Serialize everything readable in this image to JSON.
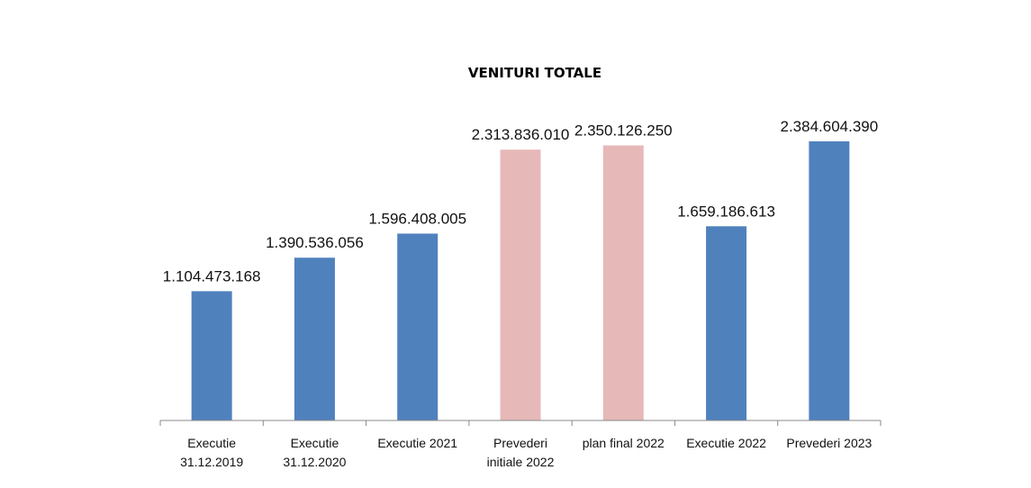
{
  "chart_data": {
    "type": "bar",
    "title": "VENITURI TOTALE",
    "xlabel": "",
    "ylabel": "",
    "ylim": [
      0,
      2500000000
    ],
    "grid": false,
    "legend": "none",
    "categories": [
      [
        "Executie",
        "31.12.2019"
      ],
      [
        "Executie",
        "31.12.2020"
      ],
      [
        "Executie 2021"
      ],
      [
        "Prevederi",
        "initiale 2022"
      ],
      [
        "plan final 2022"
      ],
      [
        "Executie 2022"
      ],
      [
        "Prevederi 2023"
      ]
    ],
    "values": [
      1104473168,
      1390536056,
      1596408005,
      2313836010,
      2350126250,
      1659186613,
      2384604390
    ],
    "data_labels": [
      "1.104.473.168",
      "1.390.536.056",
      "1.596.408.005",
      "2.313.836.010",
      "2.350.126.250",
      "1.659.186.613",
      "2.384.604.390"
    ],
    "bar_colors": [
      "#4f81bd",
      "#4f81bd",
      "#4f81bd",
      "#e6b9b8",
      "#e6b9b8",
      "#4f81bd",
      "#4f81bd"
    ]
  }
}
